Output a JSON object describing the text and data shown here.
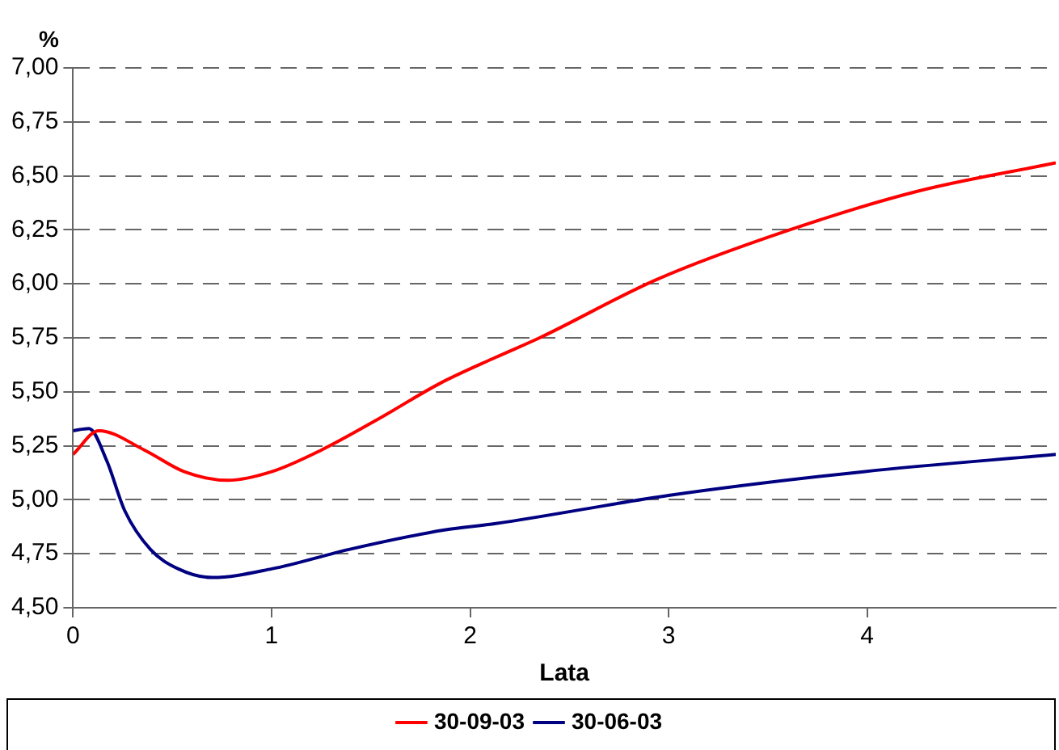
{
  "chart_data": {
    "type": "line",
    "ylabel": "%",
    "xlabel": "Lata",
    "xlim": [
      0,
      4.95
    ],
    "xticks": [
      0,
      1,
      2,
      3,
      4
    ],
    "ylim": [
      4.5,
      7.0
    ],
    "yticks": [
      {
        "value": 4.5,
        "label": "4,50"
      },
      {
        "value": 4.75,
        "label": "4,75"
      },
      {
        "value": 5.0,
        "label": "5,00"
      },
      {
        "value": 5.25,
        "label": "5,25"
      },
      {
        "value": 5.5,
        "label": "5,50"
      },
      {
        "value": 5.75,
        "label": "5,75"
      },
      {
        "value": 6.0,
        "label": "6,00"
      },
      {
        "value": 6.25,
        "label": "6,25"
      },
      {
        "value": 6.5,
        "label": "6,50"
      },
      {
        "value": 6.75,
        "label": "6,75"
      },
      {
        "value": 7.0,
        "label": "7,00"
      }
    ],
    "grid": "y",
    "legend": "bottom",
    "marker": "none",
    "line_style": "solid",
    "series": [
      {
        "name": "30-09-03",
        "color": "#ff0000",
        "x": [
          0,
          0.13,
          0.36,
          0.56,
          0.78,
          1.0,
          1.25,
          1.53,
          1.85,
          2.13,
          2.35,
          2.94,
          3.61,
          4.26,
          4.95
        ],
        "values": [
          5.21,
          5.32,
          5.23,
          5.13,
          5.09,
          5.13,
          5.23,
          5.37,
          5.54,
          5.66,
          5.75,
          6.02,
          6.25,
          6.43,
          6.56
        ]
      },
      {
        "name": "30-06-03",
        "color": "#000080",
        "x": [
          0,
          0.08,
          0.17,
          0.26,
          0.39,
          0.53,
          0.7,
          1.0,
          1.39,
          1.87,
          2.13,
          3.0,
          3.98,
          4.95
        ],
        "values": [
          5.32,
          5.33,
          5.18,
          4.95,
          4.77,
          4.68,
          4.64,
          4.68,
          4.77,
          4.86,
          4.89,
          5.02,
          5.13,
          5.21
        ]
      }
    ]
  }
}
